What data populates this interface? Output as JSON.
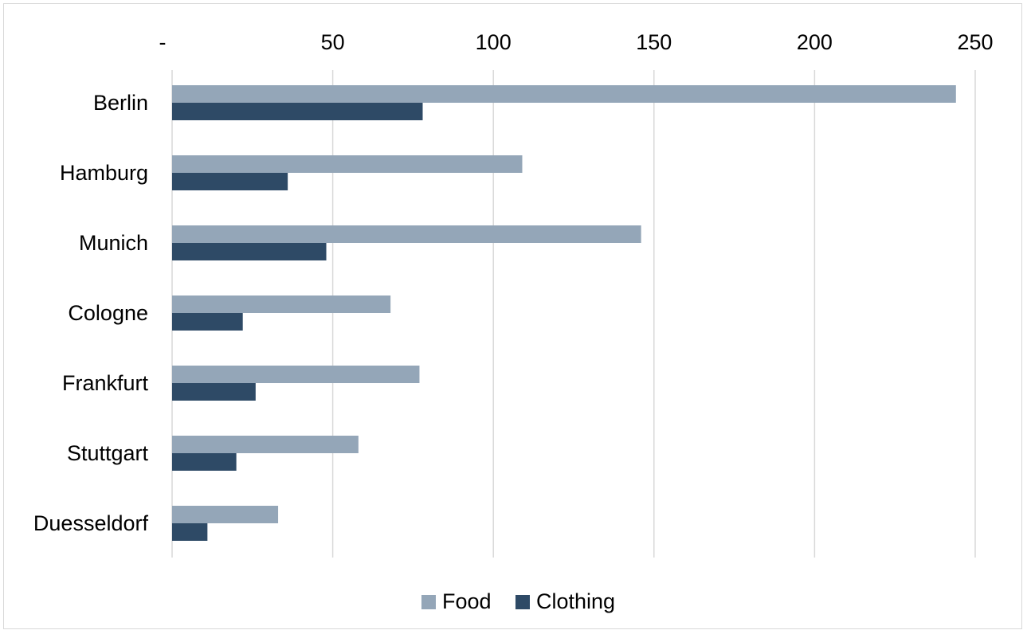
{
  "chart_data": {
    "type": "bar",
    "orientation": "horizontal",
    "categories": [
      "Berlin",
      "Hamburg",
      "Munich",
      "Cologne",
      "Frankfurt",
      "Stuttgart",
      "Duesseldorf"
    ],
    "series": [
      {
        "name": "Food",
        "color": "#94a6b8",
        "values": [
          244,
          109,
          146,
          68,
          77,
          58,
          33
        ]
      },
      {
        "name": "Clothing",
        "color": "#2e4a66",
        "values": [
          78,
          36,
          48,
          22,
          26,
          20,
          11
        ]
      }
    ],
    "x_ticks": [
      "-",
      "50",
      "100",
      "150",
      "200",
      "250"
    ],
    "x_tick_values": [
      0,
      50,
      100,
      150,
      200,
      250
    ],
    "xlim": [
      0,
      250
    ],
    "x_axis_position": "top",
    "grid": true,
    "gridline_color": "#d9d9d9",
    "legend_position": "bottom"
  }
}
